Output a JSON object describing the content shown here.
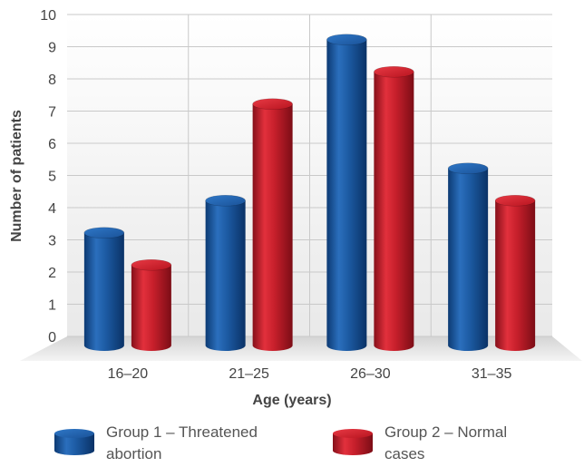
{
  "chart_data": {
    "type": "bar",
    "title": "",
    "xlabel": "Age (years)",
    "ylabel": "Number of patients",
    "categories": [
      "16–20",
      "21–25",
      "26–30",
      "31–35"
    ],
    "ylim": [
      0,
      10
    ],
    "yticks": [
      0,
      1,
      2,
      3,
      4,
      5,
      6,
      7,
      8,
      9,
      10
    ],
    "grid": true,
    "legend_position": "bottom",
    "series": [
      {
        "name": "Group 1 – Threatened abortion",
        "legend_lines": [
          "Group 1 – Threatened",
          "abortion"
        ],
        "values": [
          3.5,
          4.5,
          9.5,
          5.5
        ],
        "color": "#1f5fa8"
      },
      {
        "name": "Group 2 – Normal cases",
        "legend_lines": [
          "Group 2 – Normal",
          "cases"
        ],
        "values": [
          2.5,
          7.5,
          8.5,
          4.5
        ],
        "color": "#c8202d"
      }
    ]
  }
}
